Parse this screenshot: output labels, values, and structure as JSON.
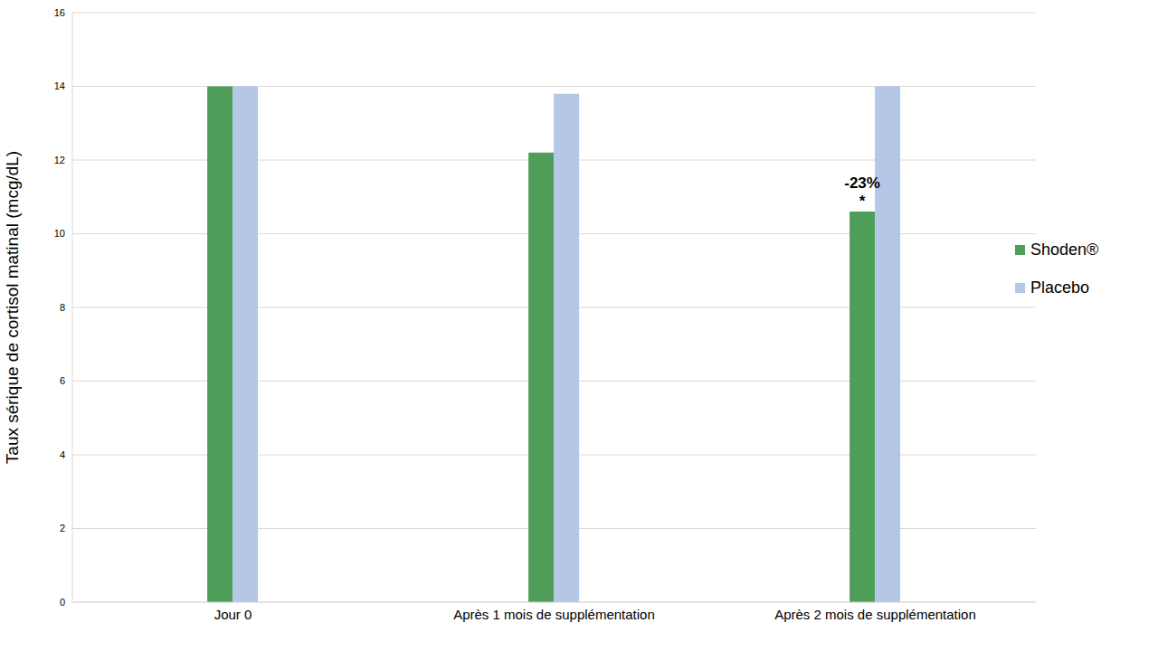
{
  "chart_data": {
    "type": "bar",
    "categories": [
      "Jour 0",
      "Après 1 mois de supplémentation",
      "Après 2 mois de supplémentation"
    ],
    "series": [
      {
        "name": "Shoden®",
        "color": "#4e9e5a",
        "values": [
          14,
          12.2,
          10.6
        ]
      },
      {
        "name": "Placebo",
        "color": "#b4c7e7",
        "values": [
          14,
          13.8,
          14
        ]
      }
    ],
    "y_label": "Taux sérique de cortisol matinal (mcg/dL)",
    "ylim": [
      0,
      16
    ],
    "yticks": [
      0,
      2,
      4,
      6,
      8,
      10,
      12,
      14,
      16
    ],
    "grid": true,
    "legend": "right",
    "annotations": [
      {
        "text": "-23%",
        "series": "Shoden®",
        "category": "Après 2 mois de supplémentation"
      },
      {
        "text": "*",
        "series": "Shoden®",
        "category": "Après 2 mois de supplémentation"
      }
    ]
  }
}
